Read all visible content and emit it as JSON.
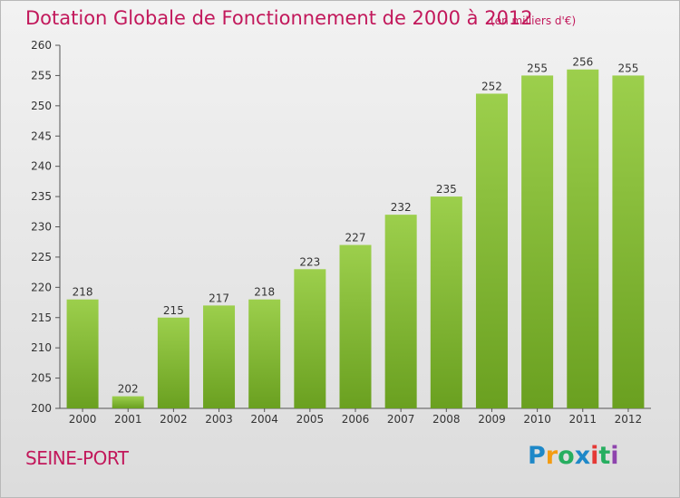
{
  "title": "Dotation Globale de Fonctionnement de 2000 à 2012",
  "subtitle": "(en milliers d'€)",
  "place": "SEINE-PORT",
  "logo": {
    "letters": [
      "P",
      "r",
      "o",
      "x",
      "i",
      "t",
      "i"
    ],
    "colors": [
      "#1e88c8",
      "#f39c12",
      "#27ae60",
      "#1e88c8",
      "#e53935",
      "#27ae60",
      "#8e44ad"
    ]
  },
  "colors": {
    "bar_top": "#9ccf4c",
    "bar_bottom": "#6aa020",
    "text_accent": "#c2185b"
  },
  "chart_data": {
    "type": "bar",
    "categories": [
      "2000",
      "2001",
      "2002",
      "2003",
      "2004",
      "2005",
      "2006",
      "2007",
      "2008",
      "2009",
      "2010",
      "2011",
      "2012"
    ],
    "values": [
      218,
      202,
      215,
      217,
      218,
      223,
      227,
      232,
      235,
      252,
      255,
      256,
      255
    ],
    "title": "Dotation Globale de Fonctionnement de 2000 à 2012",
    "ylim": [
      200,
      260
    ],
    "yticks": [
      200,
      205,
      210,
      215,
      220,
      225,
      230,
      235,
      240,
      245,
      250,
      255,
      260
    ],
    "grid": false,
    "data_labels": true
  }
}
